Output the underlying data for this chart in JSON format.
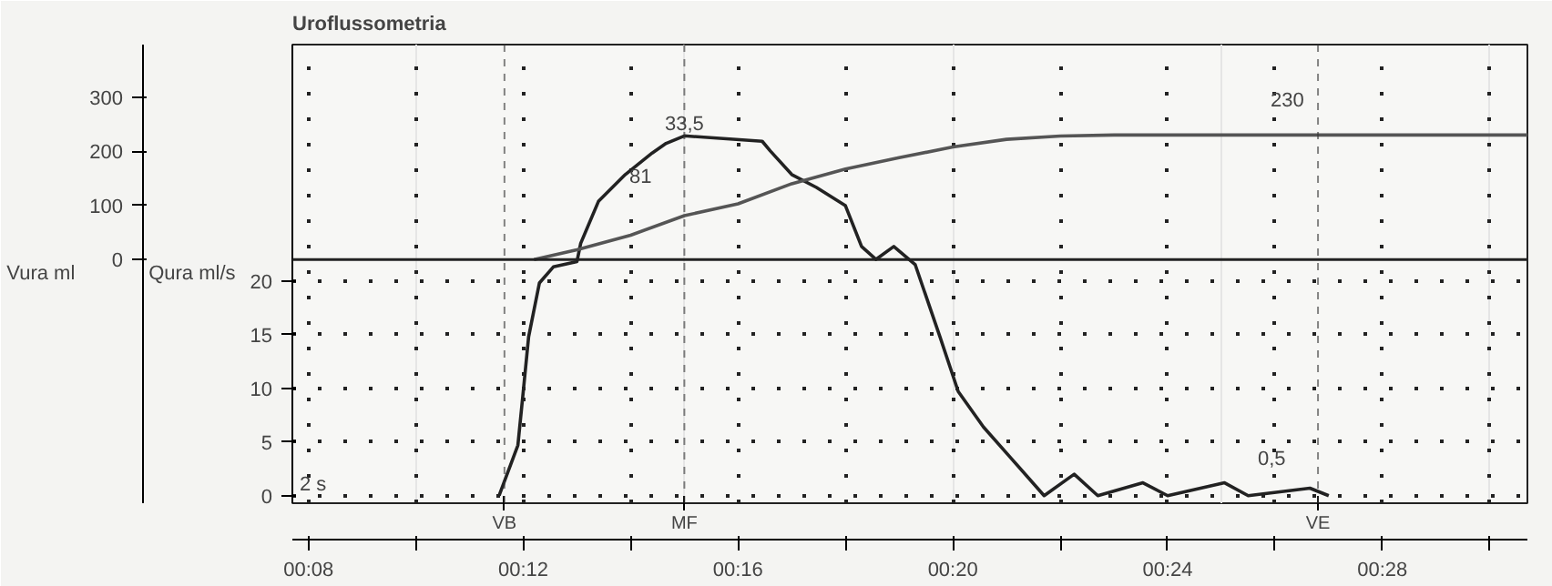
{
  "chart_data": {
    "type": "line",
    "title": "Uroflussometria",
    "ylabel": "Qura ml/s",
    "y2label": "Vura ml",
    "series": [
      {
        "color": "#222222",
        "x": [
          11.55,
          11.9,
          12.0,
          12.1,
          12.3,
          12.56,
          13.0,
          13.07,
          13.4,
          13.9,
          14.4,
          14.66,
          15.0,
          16.45,
          16.6,
          17.0,
          17.46,
          18.0,
          18.3,
          18.57,
          18.9,
          19.3,
          19.76,
          20.1,
          20.57,
          21.1,
          21.7,
          22.26,
          22.7,
          23.54,
          24.0,
          25.06,
          25.5,
          26.65,
          27.0
        ],
        "values": [
          0,
          4.7,
          9.7,
          14.8,
          19.8,
          21.3,
          21.8,
          23.5,
          27.4,
          29.9,
          31.9,
          32.8,
          33.5,
          33,
          32.1,
          29.9,
          28.7,
          27,
          23.2,
          22,
          23.2,
          21.5,
          14.8,
          9.7,
          6.4,
          3.4,
          0,
          2.0,
          0,
          1.2,
          0,
          1.2,
          0,
          0.7,
          0
        ]
      },
      {
        "color": "#555555",
        "axis": "y2",
        "x": [
          12.2,
          13,
          14,
          15,
          16,
          17,
          18,
          19,
          20,
          21,
          22,
          23,
          30.7
        ],
        "values": [
          0,
          18,
          45,
          81,
          103,
          140,
          167,
          188,
          208,
          222,
          228,
          230,
          230
        ]
      }
    ],
    "xlim": [
      7.7,
      30.7
    ],
    "xticks": [
      {
        "value": 8,
        "label": "00:08"
      },
      {
        "value": 10,
        "label": null
      },
      {
        "value": 12,
        "label": "00:12"
      },
      {
        "value": 14,
        "label": null
      },
      {
        "value": 16,
        "label": "00:16"
      },
      {
        "value": 18,
        "label": null
      },
      {
        "value": 20,
        "label": "00:20"
      },
      {
        "value": 22,
        "label": null
      },
      {
        "value": 24,
        "label": "00:24"
      },
      {
        "value": 26,
        "label": null
      },
      {
        "value": 28,
        "label": "00:28"
      },
      {
        "value": 30,
        "label": null
      }
    ],
    "ylim": [
      -0.7,
      42
    ],
    "yticks": [
      0,
      5,
      10,
      15,
      20
    ],
    "y2lim": [
      -450,
      397
    ],
    "y2ticks": [
      0,
      100,
      200,
      300
    ],
    "ref_lines": [
      {
        "axis": "x",
        "value": 11.65,
        "label": "VB"
      },
      {
        "axis": "x",
        "value": 15.0,
        "label": "MF"
      },
      {
        "axis": "x",
        "value": 26.8,
        "label": "VE"
      },
      {
        "axis": "y2",
        "value": 0,
        "label": null
      }
    ],
    "annotations": [
      "2 s",
      {
        "text": "33,5",
        "x": 15.0,
        "y": 33.5
      },
      "81",
      "230",
      "0,5"
    ],
    "grid": true,
    "line_style": "solid"
  }
}
